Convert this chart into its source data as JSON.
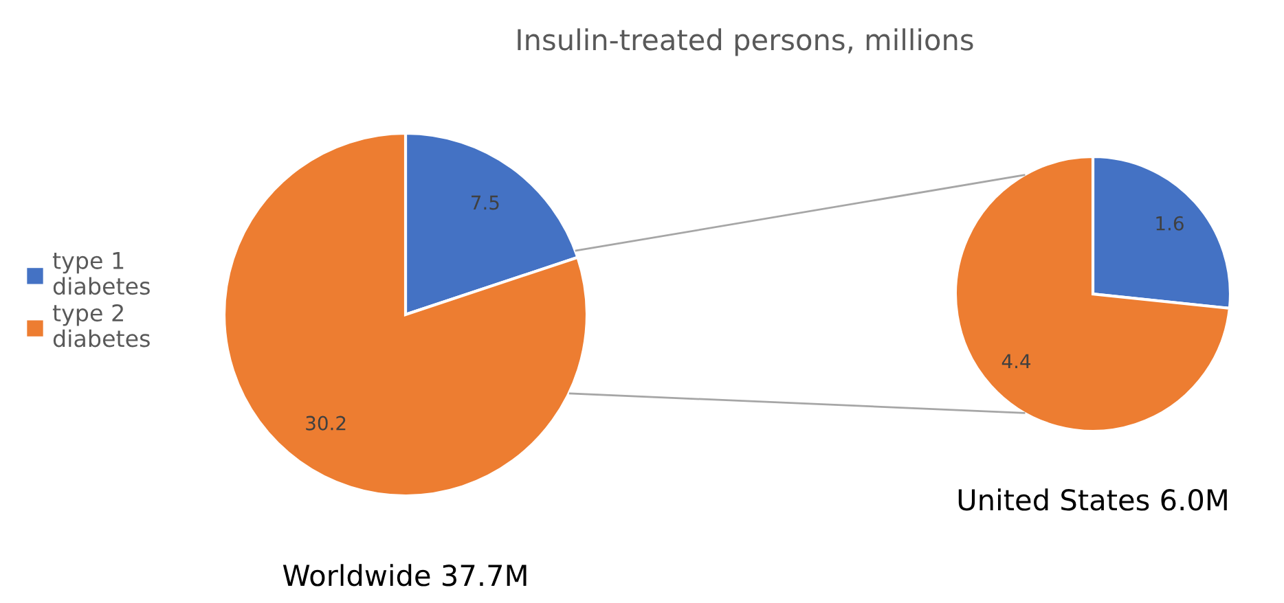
{
  "chart_data": [
    {
      "type": "pie",
      "title": "Insulin-treated persons, millions",
      "xlabel": "Worldwide 37.7M",
      "categories": [
        "type 1 diabetes",
        "type 2 diabetes"
      ],
      "values": [
        7.5,
        30.2
      ],
      "colors": [
        "#4472c4",
        "#ed7d31"
      ],
      "data_labels": true,
      "legend": "left"
    },
    {
      "type": "pie",
      "xlabel": "United States 6.0M",
      "values": [
        1.6,
        4.4
      ],
      "colors": [
        "#4472c4",
        "#ed7d31"
      ],
      "data_labels": true
    }
  ]
}
